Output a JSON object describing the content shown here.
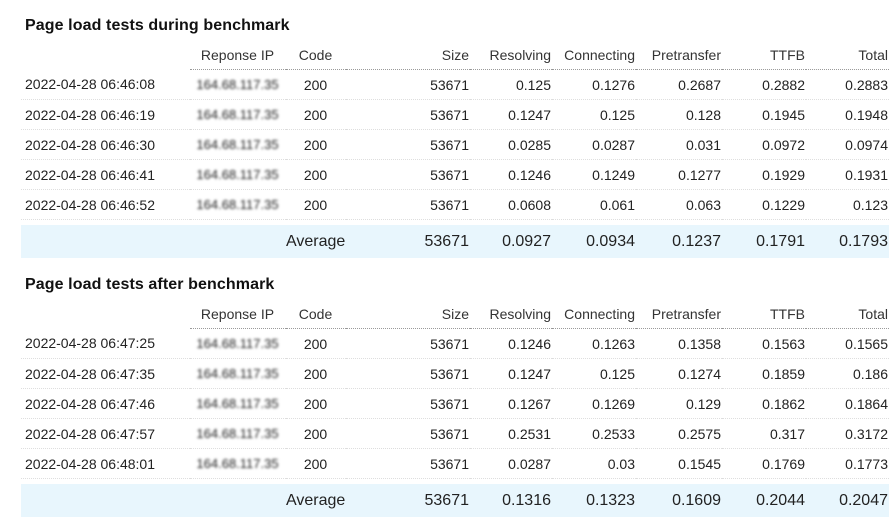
{
  "columns": [
    "Reponse IP",
    "Code",
    "Size",
    "Resolving",
    "Connecting",
    "Pretransfer",
    "TTFB",
    "Total"
  ],
  "during": {
    "title": "Page load tests during benchmark",
    "rows": [
      {
        "time": "2022-04-28 06:46:08",
        "ip": "164.68.117.35",
        "code": "200",
        "size": "53671",
        "resolving": "0.125",
        "connecting": "0.1276",
        "pretransfer": "0.2687",
        "ttfb": "0.2882",
        "total": "0.2883"
      },
      {
        "time": "2022-04-28 06:46:19",
        "ip": "164.68.117.35",
        "code": "200",
        "size": "53671",
        "resolving": "0.1247",
        "connecting": "0.125",
        "pretransfer": "0.128",
        "ttfb": "0.1945",
        "total": "0.1948"
      },
      {
        "time": "2022-04-28 06:46:30",
        "ip": "164.68.117.35",
        "code": "200",
        "size": "53671",
        "resolving": "0.0285",
        "connecting": "0.0287",
        "pretransfer": "0.031",
        "ttfb": "0.0972",
        "total": "0.0974"
      },
      {
        "time": "2022-04-28 06:46:41",
        "ip": "164.68.117.35",
        "code": "200",
        "size": "53671",
        "resolving": "0.1246",
        "connecting": "0.1249",
        "pretransfer": "0.1277",
        "ttfb": "0.1929",
        "total": "0.1931"
      },
      {
        "time": "2022-04-28 06:46:52",
        "ip": "164.68.117.35",
        "code": "200",
        "size": "53671",
        "resolving": "0.0608",
        "connecting": "0.061",
        "pretransfer": "0.063",
        "ttfb": "0.1229",
        "total": "0.123"
      }
    ],
    "average": {
      "label": "Average",
      "size": "53671",
      "resolving": "0.0927",
      "connecting": "0.0934",
      "pretransfer": "0.1237",
      "ttfb": "0.1791",
      "total": "0.1793"
    }
  },
  "after": {
    "title": "Page load tests after benchmark",
    "rows": [
      {
        "time": "2022-04-28 06:47:25",
        "ip": "164.68.117.35",
        "code": "200",
        "size": "53671",
        "resolving": "0.1246",
        "connecting": "0.1263",
        "pretransfer": "0.1358",
        "ttfb": "0.1563",
        "total": "0.1565"
      },
      {
        "time": "2022-04-28 06:47:35",
        "ip": "164.68.117.35",
        "code": "200",
        "size": "53671",
        "resolving": "0.1247",
        "connecting": "0.125",
        "pretransfer": "0.1274",
        "ttfb": "0.1859",
        "total": "0.186"
      },
      {
        "time": "2022-04-28 06:47:46",
        "ip": "164.68.117.35",
        "code": "200",
        "size": "53671",
        "resolving": "0.1267",
        "connecting": "0.1269",
        "pretransfer": "0.129",
        "ttfb": "0.1862",
        "total": "0.1864"
      },
      {
        "time": "2022-04-28 06:47:57",
        "ip": "164.68.117.35",
        "code": "200",
        "size": "53671",
        "resolving": "0.2531",
        "connecting": "0.2533",
        "pretransfer": "0.2575",
        "ttfb": "0.317",
        "total": "0.3172"
      },
      {
        "time": "2022-04-28 06:48:01",
        "ip": "164.68.117.35",
        "code": "200",
        "size": "53671",
        "resolving": "0.0287",
        "connecting": "0.03",
        "pretransfer": "0.1545",
        "ttfb": "0.1769",
        "total": "0.1773"
      }
    ],
    "average": {
      "label": "Average",
      "size": "53671",
      "resolving": "0.1316",
      "connecting": "0.1323",
      "pretransfer": "0.1609",
      "ttfb": "0.2044",
      "total": "0.2047"
    }
  },
  "colors": {
    "code_ok": "#2f8a2f",
    "average_row_bg": "#e8f6fd"
  }
}
